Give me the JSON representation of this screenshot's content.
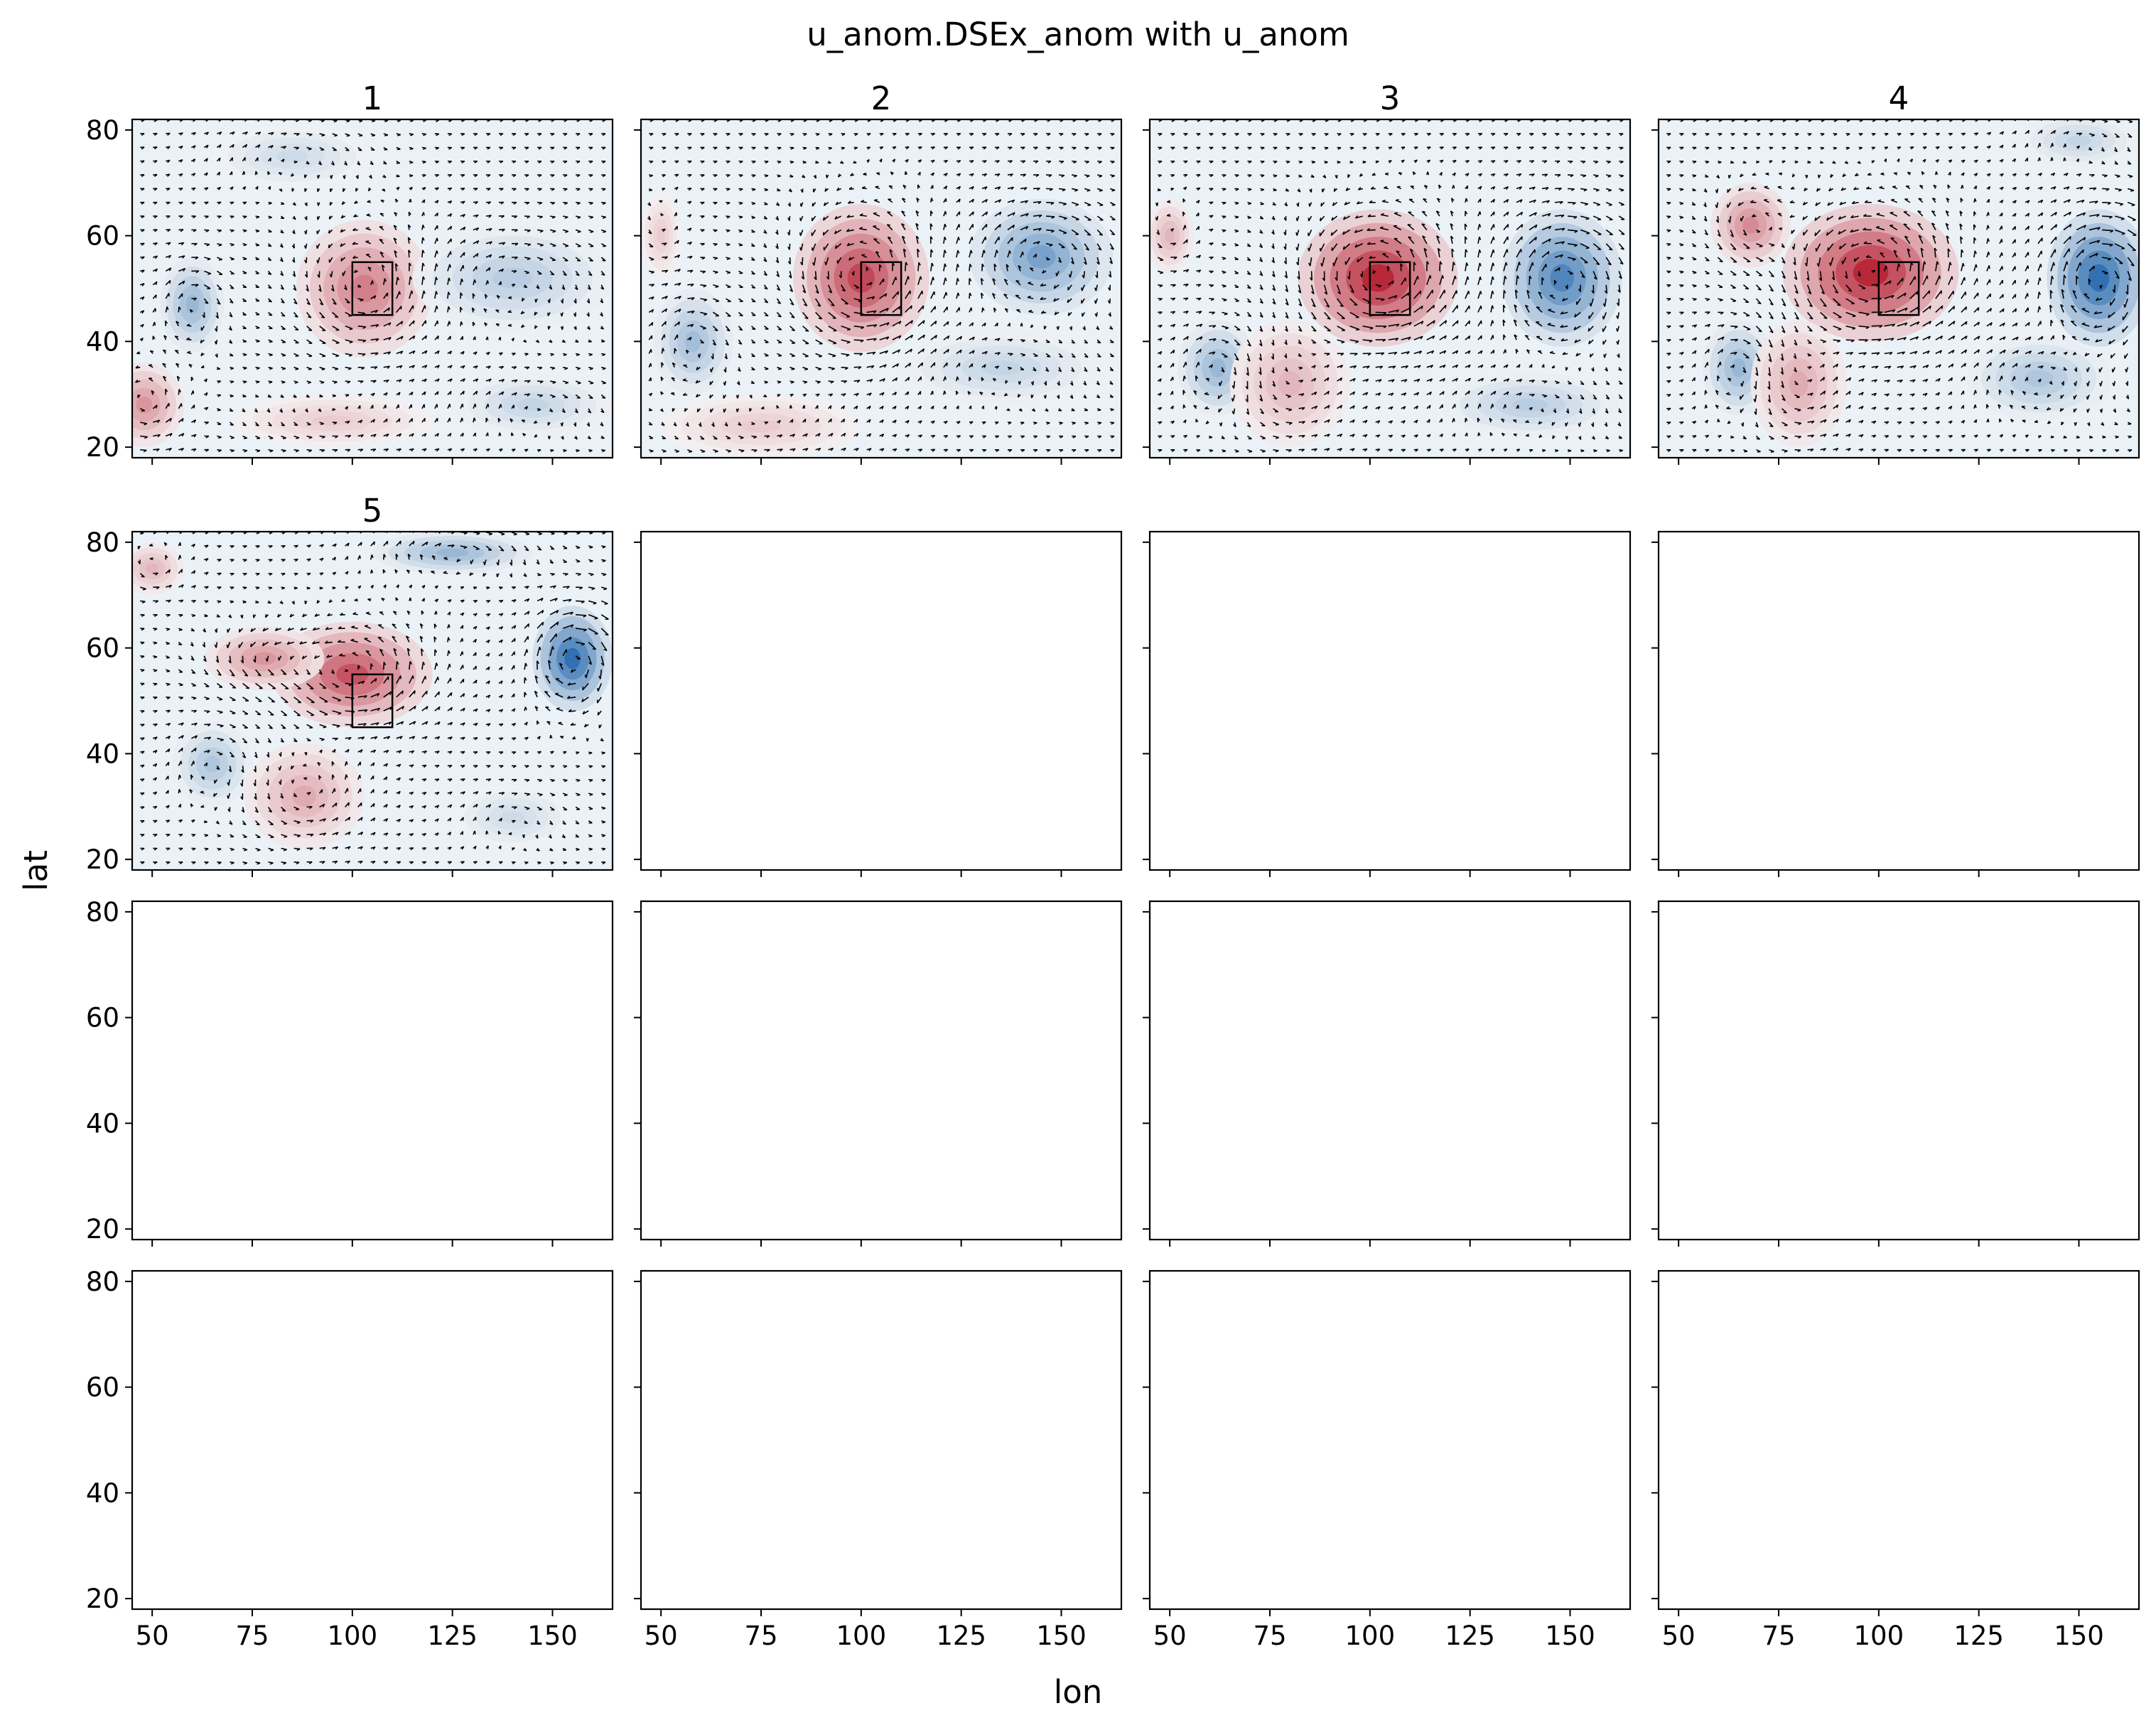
{
  "figure": {
    "suptitle": "u_anom.DSEx_anom with u_anom",
    "xlabel": "lon",
    "ylabel": "lat"
  },
  "chart_data": {
    "type": "heatmap",
    "description_kind": "small-multiples anomaly maps with wind-vector overlay",
    "xlim": [
      45,
      165
    ],
    "ylim": [
      18,
      82
    ],
    "xticks": [
      50,
      75,
      100,
      125,
      150
    ],
    "yticks": [
      20,
      40,
      60,
      80
    ],
    "grid": false,
    "colormap": "RdBu_r",
    "colors": {
      "positive": "#b2182b",
      "negative": "#2166ac",
      "zero": "#f7f7f7"
    },
    "reference_box": {
      "lon": [
        100,
        110
      ],
      "lat": [
        45,
        55
      ]
    },
    "panels": [
      {
        "title": "1",
        "has_data": true,
        "anomalies": [
          {
            "lon": 103,
            "lat": 50,
            "rx": 17,
            "ry": 13,
            "value": 0.55
          },
          {
            "lon": 60,
            "lat": 47,
            "rx": 8,
            "ry": 9,
            "value": -0.45
          },
          {
            "lon": 140,
            "lat": 52,
            "rx": 25,
            "ry": 10,
            "value": -0.3
          },
          {
            "lon": 48,
            "lat": 28,
            "rx": 10,
            "ry": 8,
            "value": 0.45
          },
          {
            "lon": 85,
            "lat": 75,
            "rx": 20,
            "ry": 6,
            "value": -0.2
          },
          {
            "lon": 145,
            "lat": 28,
            "rx": 20,
            "ry": 6,
            "value": -0.25
          },
          {
            "lon": 95,
            "lat": 25,
            "rx": 25,
            "ry": 5,
            "value": 0.2
          }
        ]
      },
      {
        "title": "2",
        "has_data": true,
        "anomalies": [
          {
            "lon": 100,
            "lat": 52,
            "rx": 17,
            "ry": 14,
            "value": 0.8
          },
          {
            "lon": 145,
            "lat": 56,
            "rx": 18,
            "ry": 11,
            "value": -0.6
          },
          {
            "lon": 58,
            "lat": 40,
            "rx": 10,
            "ry": 10,
            "value": -0.4
          },
          {
            "lon": 75,
            "lat": 24,
            "rx": 25,
            "ry": 6,
            "value": 0.2
          },
          {
            "lon": 135,
            "lat": 35,
            "rx": 25,
            "ry": 7,
            "value": -0.25
          },
          {
            "lon": 50,
            "lat": 60,
            "rx": 5,
            "ry": 8,
            "value": 0.2
          }
        ]
      },
      {
        "title": "3",
        "has_data": true,
        "anomalies": [
          {
            "lon": 102,
            "lat": 52,
            "rx": 20,
            "ry": 13,
            "value": 0.95
          },
          {
            "lon": 148,
            "lat": 52,
            "rx": 15,
            "ry": 13,
            "value": -0.8
          },
          {
            "lon": 62,
            "lat": 35,
            "rx": 10,
            "ry": 9,
            "value": -0.45
          },
          {
            "lon": 80,
            "lat": 32,
            "rx": 15,
            "ry": 12,
            "value": 0.3
          },
          {
            "lon": 140,
            "lat": 28,
            "rx": 22,
            "ry": 6,
            "value": -0.3
          },
          {
            "lon": 50,
            "lat": 60,
            "rx": 6,
            "ry": 7,
            "value": 0.3
          }
        ]
      },
      {
        "title": "4",
        "has_data": true,
        "anomalies": [
          {
            "lon": 98,
            "lat": 53,
            "rx": 22,
            "ry": 13,
            "value": 0.95
          },
          {
            "lon": 155,
            "lat": 52,
            "rx": 13,
            "ry": 13,
            "value": -0.95
          },
          {
            "lon": 65,
            "lat": 35,
            "rx": 9,
            "ry": 9,
            "value": -0.45
          },
          {
            "lon": 80,
            "lat": 32,
            "rx": 12,
            "ry": 12,
            "value": 0.35
          },
          {
            "lon": 68,
            "lat": 62,
            "rx": 10,
            "ry": 8,
            "value": 0.5
          },
          {
            "lon": 140,
            "lat": 33,
            "rx": 18,
            "ry": 8,
            "value": -0.35
          },
          {
            "lon": 150,
            "lat": 78,
            "rx": 15,
            "ry": 5,
            "value": -0.25
          }
        ]
      },
      {
        "title": "5",
        "has_data": true,
        "anomalies": [
          {
            "lon": 100,
            "lat": 55,
            "rx": 20,
            "ry": 10,
            "value": 0.75
          },
          {
            "lon": 78,
            "lat": 58,
            "rx": 15,
            "ry": 6,
            "value": 0.45
          },
          {
            "lon": 155,
            "lat": 58,
            "rx": 10,
            "ry": 10,
            "value": -0.95
          },
          {
            "lon": 125,
            "lat": 78,
            "rx": 20,
            "ry": 4,
            "value": -0.45
          },
          {
            "lon": 65,
            "lat": 38,
            "rx": 10,
            "ry": 8,
            "value": -0.35
          },
          {
            "lon": 88,
            "lat": 32,
            "rx": 15,
            "ry": 10,
            "value": 0.35
          },
          {
            "lon": 50,
            "lat": 75,
            "rx": 8,
            "ry": 5,
            "value": 0.3
          },
          {
            "lon": 140,
            "lat": 28,
            "rx": 15,
            "ry": 6,
            "value": -0.2
          }
        ]
      },
      {
        "title": "",
        "has_data": false
      },
      {
        "title": "",
        "has_data": false
      },
      {
        "title": "",
        "has_data": false
      },
      {
        "title": "",
        "has_data": false
      },
      {
        "title": "",
        "has_data": false
      },
      {
        "title": "",
        "has_data": false
      },
      {
        "title": "",
        "has_data": false
      },
      {
        "title": "",
        "has_data": false
      },
      {
        "title": "",
        "has_data": false
      },
      {
        "title": "",
        "has_data": false
      },
      {
        "title": "",
        "has_data": false
      }
    ]
  }
}
